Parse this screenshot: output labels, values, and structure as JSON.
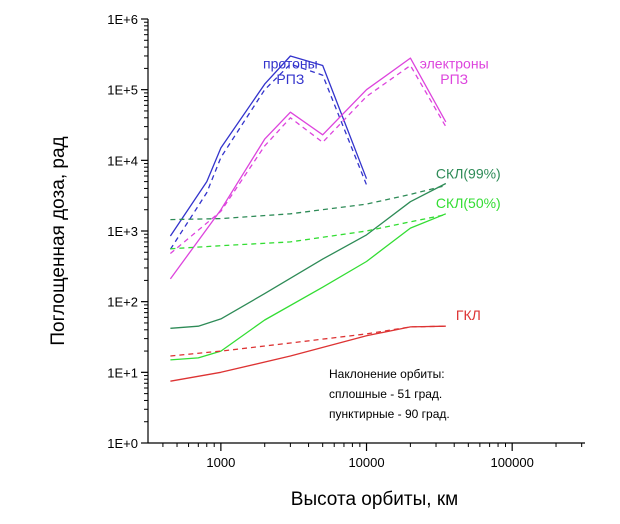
{
  "chart_data": {
    "type": "line",
    "x_scale": "log",
    "y_scale": "log",
    "xlim": [
      316,
      316228
    ],
    "ylim": [
      1,
      1000000
    ],
    "x_ticks": [
      {
        "value": 1000,
        "label": "1000"
      },
      {
        "value": 10000,
        "label": "10000"
      },
      {
        "value": 100000,
        "label": "100000"
      }
    ],
    "y_ticks": [
      {
        "value": 1,
        "label": "1E+0"
      },
      {
        "value": 10,
        "label": "1E+1"
      },
      {
        "value": 100,
        "label": "1E+2"
      },
      {
        "value": 1000,
        "label": "1E+3"
      },
      {
        "value": 10000,
        "label": "1E+4"
      },
      {
        "value": 100000,
        "label": "1E+5"
      },
      {
        "value": 1000000,
        "label": "1E+6"
      }
    ],
    "xlabel": "Высота орбиты, км",
    "ylabel": "Поглощенная доза, рад",
    "grid": false,
    "series": [
      {
        "group": "РПЗ протоны",
        "style": "solid",
        "color": "#3333cc",
        "points": [
          [
            450,
            850
          ],
          [
            800,
            5000
          ],
          [
            1000,
            15000
          ],
          [
            2000,
            120000
          ],
          [
            3000,
            300000
          ],
          [
            5000,
            220000
          ],
          [
            10000,
            5500
          ]
        ]
      },
      {
        "group": "РПЗ протоны",
        "style": "dashed",
        "color": "#3333cc",
        "points": [
          [
            450,
            550
          ],
          [
            800,
            3500
          ],
          [
            1000,
            11000
          ],
          [
            2000,
            100000
          ],
          [
            3000,
            230000
          ],
          [
            5000,
            160000
          ],
          [
            10000,
            4500
          ]
        ]
      },
      {
        "group": "РПЗ электроны",
        "style": "solid",
        "color": "#dd44dd",
        "points": [
          [
            450,
            210
          ],
          [
            1000,
            2000
          ],
          [
            2000,
            20000
          ],
          [
            3000,
            48000
          ],
          [
            5000,
            23000
          ],
          [
            10000,
            100000
          ],
          [
            20000,
            280000
          ],
          [
            35000,
            35000
          ]
        ]
      },
      {
        "group": "РПЗ электроны",
        "style": "dashed",
        "color": "#dd44dd",
        "points": [
          [
            450,
            480
          ],
          [
            1000,
            1900
          ],
          [
            2000,
            16000
          ],
          [
            3000,
            40000
          ],
          [
            5000,
            18000
          ],
          [
            10000,
            80000
          ],
          [
            20000,
            220000
          ],
          [
            35000,
            30000
          ]
        ]
      },
      {
        "group": "СКЛ(99%)",
        "style": "solid",
        "color": "#2e8b57",
        "points": [
          [
            450,
            42
          ],
          [
            700,
            45
          ],
          [
            1000,
            57
          ],
          [
            2000,
            130
          ],
          [
            5000,
            400
          ],
          [
            10000,
            880
          ],
          [
            20000,
            2600
          ],
          [
            35000,
            4700
          ]
        ]
      },
      {
        "group": "СКЛ(99%)",
        "style": "dashed",
        "color": "#2e8b57",
        "points": [
          [
            450,
            1450
          ],
          [
            1000,
            1500
          ],
          [
            3000,
            1750
          ],
          [
            10000,
            2400
          ],
          [
            20000,
            3300
          ],
          [
            35000,
            4400
          ]
        ]
      },
      {
        "group": "СКЛ(50%)",
        "style": "solid",
        "color": "#33dd33",
        "points": [
          [
            450,
            15
          ],
          [
            700,
            16
          ],
          [
            1000,
            20
          ],
          [
            2000,
            55
          ],
          [
            5000,
            160
          ],
          [
            10000,
            370
          ],
          [
            20000,
            1100
          ],
          [
            35000,
            1750
          ]
        ]
      },
      {
        "group": "СКЛ(50%)",
        "style": "dashed",
        "color": "#33dd33",
        "points": [
          [
            450,
            560
          ],
          [
            1000,
            620
          ],
          [
            3000,
            700
          ],
          [
            10000,
            1000
          ],
          [
            20000,
            1350
          ],
          [
            35000,
            1700
          ]
        ]
      },
      {
        "group": "ГКЛ",
        "style": "solid",
        "color": "#dd3333",
        "points": [
          [
            450,
            7.5
          ],
          [
            1000,
            10
          ],
          [
            3000,
            17
          ],
          [
            10000,
            33
          ],
          [
            20000,
            44
          ],
          [
            35000,
            45
          ]
        ]
      },
      {
        "group": "ГКЛ",
        "style": "dashed",
        "color": "#dd3333",
        "points": [
          [
            450,
            17
          ],
          [
            1000,
            20
          ],
          [
            3000,
            26
          ],
          [
            10000,
            35
          ],
          [
            20000,
            44
          ],
          [
            35000,
            45
          ]
        ]
      }
    ],
    "labels": [
      {
        "text": "протоны",
        "color": "#3333cc",
        "x": 3000,
        "y": 200000
      },
      {
        "text": "РПЗ",
        "color": "#3333cc",
        "x": 3000,
        "y": 120000
      },
      {
        "text": "электроны",
        "color": "#dd44dd",
        "x": 40000,
        "y": 200000
      },
      {
        "text": "РПЗ",
        "color": "#dd44dd",
        "x": 40000,
        "y": 120000
      },
      {
        "text": "СКЛ(99%)",
        "color": "#2e8b57",
        "x": 50000,
        "y": 5500
      },
      {
        "text": "СКЛ(50%)",
        "color": "#33dd33",
        "x": 50000,
        "y": 2100
      },
      {
        "text": "ГКЛ",
        "color": "#dd3333",
        "x": 50000,
        "y": 55
      }
    ],
    "annotation": [
      "Наклонение орбиты:",
      "сплошные - 51 град.",
      "пунктирные - 90 град."
    ]
  }
}
